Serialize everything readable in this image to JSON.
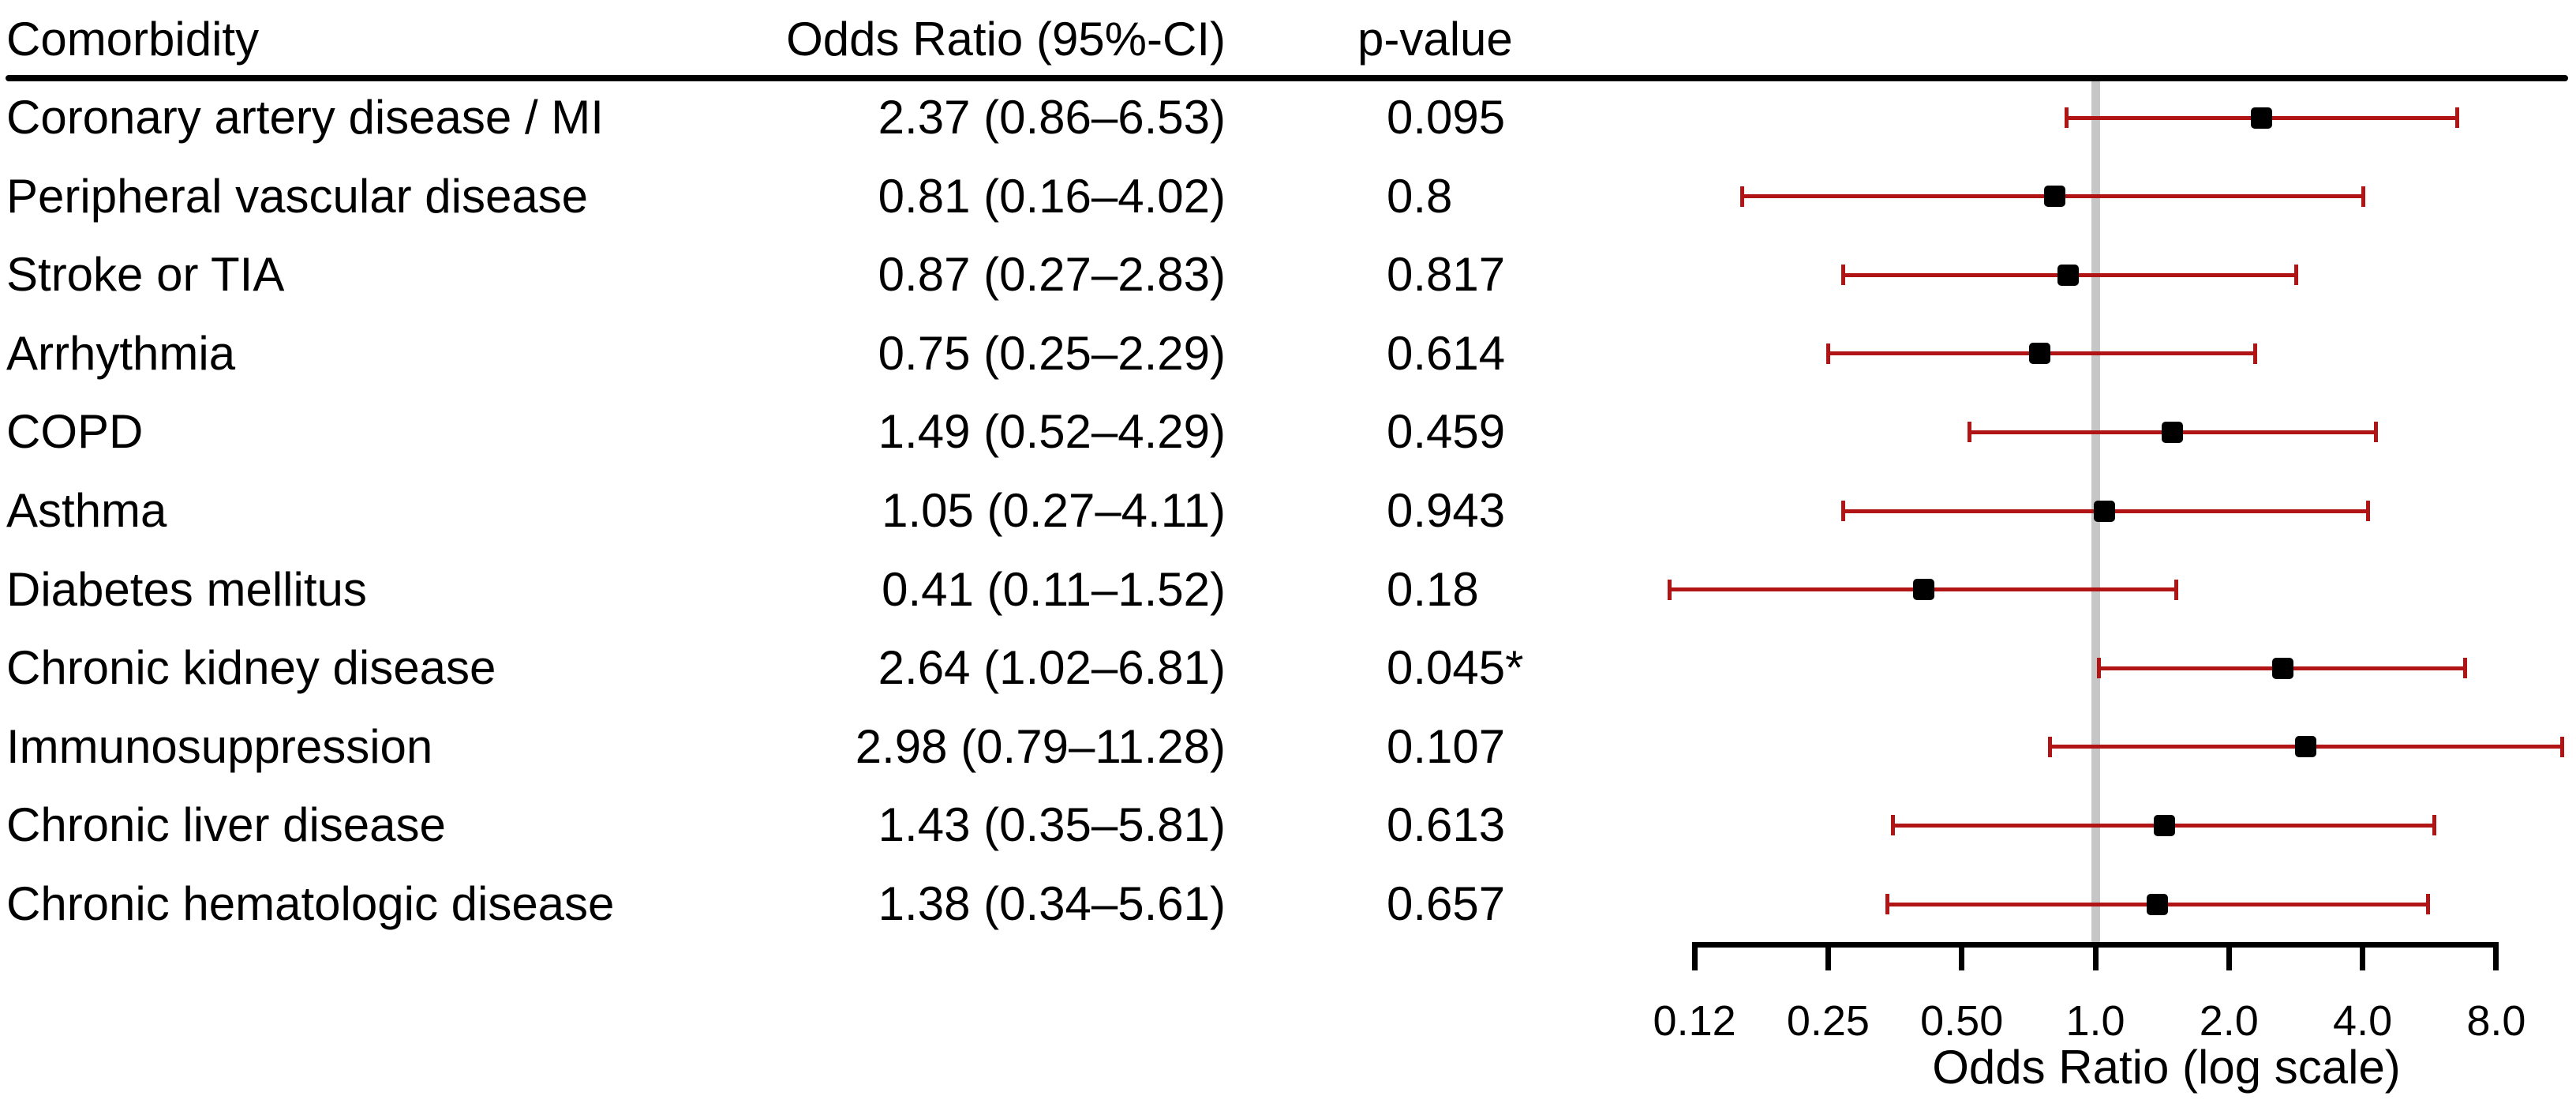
{
  "table": {
    "columns": {
      "comorbidity": "Comorbidity",
      "odds_ratio": "Odds Ratio (95%-CI)",
      "p_value": "p-value"
    }
  },
  "chart_data": {
    "type": "scatter",
    "subtype": "forest-plot",
    "xlabel": "Odds Ratio (log scale)",
    "x_scale": "log2",
    "xlim": [
      0.125,
      8
    ],
    "reference_line": 1.0,
    "grid": false,
    "x_ticks": [
      {
        "value": 0.125,
        "label": "0.12"
      },
      {
        "value": 0.25,
        "label": "0.25"
      },
      {
        "value": 0.5,
        "label": "0.50"
      },
      {
        "value": 1,
        "label": "1.0"
      },
      {
        "value": 2,
        "label": "2.0"
      },
      {
        "value": 4,
        "label": "4.0"
      },
      {
        "value": 8,
        "label": "8.0"
      }
    ],
    "rows": [
      {
        "label": "Coronary artery disease / MI",
        "or_ci": "2.37 (0.86–6.53)",
        "p": "0.095",
        "or": 2.37,
        "lo": 0.86,
        "hi": 6.53
      },
      {
        "label": "Peripheral vascular disease",
        "or_ci": "0.81 (0.16–4.02)",
        "p": "0.8",
        "or": 0.81,
        "lo": 0.16,
        "hi": 4.02
      },
      {
        "label": "Stroke or TIA",
        "or_ci": "0.87 (0.27–2.83)",
        "p": "0.817",
        "or": 0.87,
        "lo": 0.27,
        "hi": 2.83
      },
      {
        "label": "Arrhythmia",
        "or_ci": "0.75 (0.25–2.29)",
        "p": "0.614",
        "or": 0.75,
        "lo": 0.25,
        "hi": 2.29
      },
      {
        "label": "COPD",
        "or_ci": "1.49 (0.52–4.29)",
        "p": "0.459",
        "or": 1.49,
        "lo": 0.52,
        "hi": 4.29
      },
      {
        "label": "Asthma",
        "or_ci": "1.05 (0.27–4.11)",
        "p": "0.943",
        "or": 1.05,
        "lo": 0.27,
        "hi": 4.11
      },
      {
        "label": "Diabetes mellitus",
        "or_ci": "0.41 (0.11–1.52)",
        "p": "0.18",
        "or": 0.41,
        "lo": 0.11,
        "hi": 1.52
      },
      {
        "label": "Chronic kidney disease",
        "or_ci": "2.64 (1.02–6.81)",
        "p": "0.045*",
        "or": 2.64,
        "lo": 1.02,
        "hi": 6.81
      },
      {
        "label": "Immunosuppression",
        "or_ci": "2.98 (0.79–11.28)",
        "p": "0.107",
        "or": 2.98,
        "lo": 0.79,
        "hi": 11.28
      },
      {
        "label": "Chronic liver disease",
        "or_ci": "1.43 (0.35–5.81)",
        "p": "0.613",
        "or": 1.43,
        "lo": 0.35,
        "hi": 5.81
      },
      {
        "label": "Chronic hematologic disease",
        "or_ci": "1.38 (0.34–5.61)",
        "p": "0.657",
        "or": 1.38,
        "lo": 0.34,
        "hi": 5.61
      }
    ],
    "colors": {
      "ci": "#b01414",
      "marker": "#000000",
      "reference": "#c6c6c6",
      "text": "#000000",
      "rule": "#000000"
    }
  }
}
